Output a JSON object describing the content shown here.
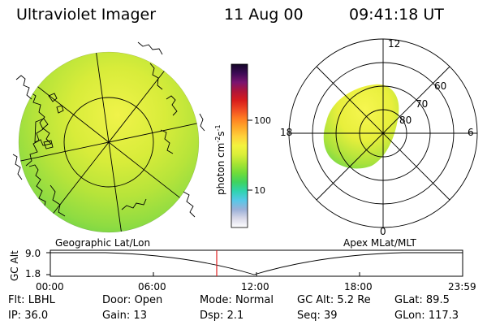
{
  "header": {
    "title": "Ultraviolet Imager",
    "date": "11 Aug 00",
    "time": "09:41:18 UT"
  },
  "colorbar": {
    "label_base": "photon cm",
    "label_exp1": "-2",
    "label_mid": "s",
    "label_exp2": "-1",
    "ticks": [
      "100",
      "10"
    ],
    "colors": [
      "#ffffff",
      "#d8d8e8",
      "#9ab0d8",
      "#56c8e8",
      "#2fd3b0",
      "#3fd35f",
      "#6fdc3a",
      "#a6e434",
      "#d8ee38",
      "#f3f33d",
      "#ffd23a",
      "#ffaa2a",
      "#ff7e22",
      "#ef4a22",
      "#d81c1c",
      "#b01538",
      "#7a1570",
      "#3c0b55",
      "#140628"
    ]
  },
  "left_panel": {
    "label": "Geographic Lat/Lon",
    "fill_colors": [
      "#f0f34a",
      "#d8ec3a",
      "#b7e43a",
      "#8fdc42",
      "#5fd04a"
    ]
  },
  "right_panel": {
    "label": "Apex MLat/MLT",
    "mlt_labels": [
      "12",
      "18",
      "6",
      "0"
    ],
    "lat_labels": [
      "60",
      "70",
      "80"
    ]
  },
  "altitude_plot": {
    "y_title": "GC Alt",
    "y_ticks": [
      "9.0",
      "1.8"
    ],
    "x_ticks": [
      "00:00",
      "06:00",
      "12:00",
      "18:00",
      "23:59"
    ],
    "marker_time_fraction": 0.4036,
    "marker_color": "#e02020"
  },
  "info_rows": [
    [
      {
        "label": "Flt:",
        "value": "LBHL"
      },
      {
        "label": "Door:",
        "value": "Open"
      },
      {
        "label": "Mode:",
        "value": "Normal"
      },
      {
        "label": "GC Alt:",
        "value": "5.2 Re"
      },
      {
        "label": "GLat:",
        "value": "89.5"
      }
    ],
    [
      {
        "label": "IP:",
        "value": "36.0"
      },
      {
        "label": "Gain:",
        "value": "13"
      },
      {
        "label": "Dsp:",
        "value": "2.1"
      },
      {
        "label": "Seq:",
        "value": "39"
      },
      {
        "label": "GLon:",
        "value": "117.3"
      }
    ]
  ]
}
